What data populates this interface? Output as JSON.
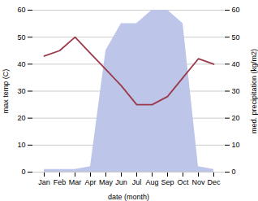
{
  "chart_data": {
    "type": "combo",
    "categories": [
      "Jan",
      "Feb",
      "Mar",
      "Apr",
      "May",
      "Jun",
      "Jul",
      "Aug",
      "Sep",
      "Oct",
      "Nov",
      "Dec"
    ],
    "series": [
      {
        "type": "area",
        "axis": "y2",
        "color": "#bdc5e8",
        "values": [
          1,
          1,
          1,
          2,
          45,
          55,
          55,
          60,
          60,
          55,
          2,
          1
        ]
      },
      {
        "type": "line",
        "color": "#9b3a4a",
        "values": [
          43,
          45,
          50,
          44,
          38,
          32,
          25,
          25,
          28,
          35,
          42,
          40
        ]
      }
    ],
    "xlabel": "date (month)",
    "ylabel": "max temp (C)",
    "y2label": "med. precipitation (kg/m2)",
    "ylim": [
      0,
      60
    ],
    "yticks": [
      0,
      10,
      20,
      30,
      40,
      50,
      60
    ],
    "y2lim": [
      0,
      60
    ],
    "y2ticks": [
      0,
      10,
      20,
      30,
      40,
      50,
      60
    ],
    "grid": true
  }
}
